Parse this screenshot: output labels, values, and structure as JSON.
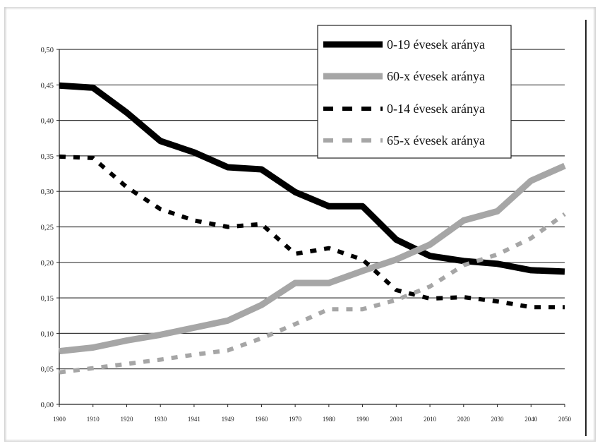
{
  "chart_data": {
    "type": "line",
    "categories": [
      "1900",
      "1910",
      "1920",
      "1930",
      "1941",
      "1949",
      "1960",
      "1970",
      "1980",
      "1990",
      "2001",
      "2010",
      "2020",
      "2030",
      "2040",
      "2050"
    ],
    "ylim": [
      0,
      0.5
    ],
    "yticks": [
      "0,00",
      "0,05",
      "0,10",
      "0,15",
      "0,20",
      "0,25",
      "0,30",
      "0,35",
      "0,40",
      "0,45",
      "0,50"
    ],
    "grid": true,
    "legend_position": "top-right",
    "series": [
      {
        "name": "0-19 évesek aránya",
        "color": "#000000",
        "style": "solid",
        "values": [
          0.449,
          0.446,
          0.411,
          0.371,
          0.355,
          0.334,
          0.331,
          0.299,
          0.279,
          0.279,
          0.232,
          0.209,
          0.202,
          0.198,
          0.189,
          0.187
        ]
      },
      {
        "name": "60-x évesek aránya",
        "color": "#a6a6a6",
        "style": "solid",
        "values": [
          0.075,
          0.08,
          0.09,
          0.098,
          0.108,
          0.118,
          0.14,
          0.171,
          0.171,
          0.188,
          0.204,
          0.225,
          0.259,
          0.272,
          0.315,
          0.336
        ]
      },
      {
        "name": "0-14 évesek aránya",
        "color": "#000000",
        "style": "dotted",
        "values": [
          0.349,
          0.347,
          0.306,
          0.275,
          0.259,
          0.25,
          0.254,
          0.212,
          0.22,
          0.204,
          0.161,
          0.149,
          0.151,
          0.145,
          0.137,
          0.137
        ]
      },
      {
        "name": "65-x évesek aránya",
        "color": "#a6a6a6",
        "style": "dotted",
        "values": [
          0.045,
          0.051,
          0.057,
          0.063,
          0.07,
          0.076,
          0.093,
          0.113,
          0.134,
          0.134,
          0.147,
          0.166,
          0.196,
          0.211,
          0.234,
          0.268
        ]
      }
    ]
  }
}
